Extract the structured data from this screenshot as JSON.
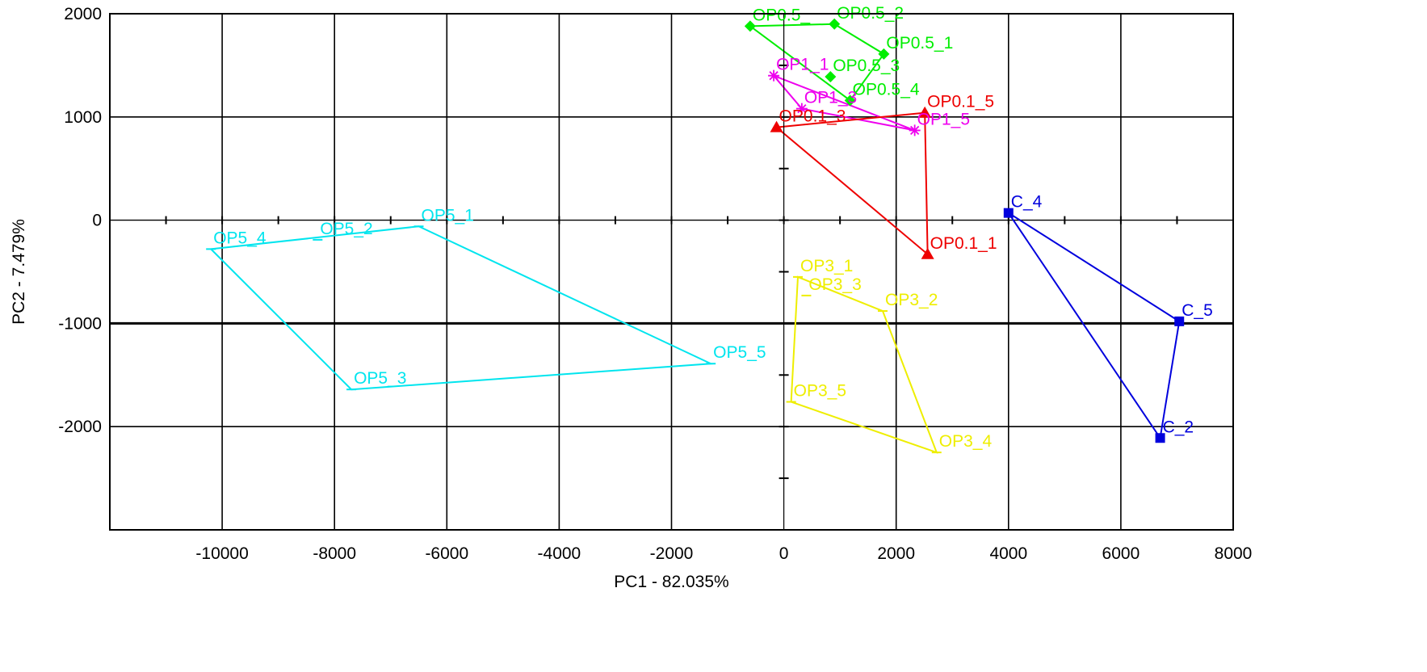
{
  "chart_data": {
    "type": "scatter",
    "title": "",
    "xlabel": "PC1 - 82.035%",
    "ylabel": "PC2 - 7.479%",
    "xlim": [
      -12000,
      8000
    ],
    "ylim": [
      -3000,
      2000
    ],
    "xticks": [
      -10000,
      -8000,
      -6000,
      -4000,
      -2000,
      0,
      2000,
      4000,
      6000,
      8000
    ],
    "yticks": [
      -2000,
      -1000,
      0,
      1000,
      2000
    ],
    "grid": true,
    "series": [
      {
        "color": "#00ee00",
        "marker": "diamond",
        "points": [
          {
            "label": "OP0.5_",
            "x": -600,
            "y": 1880
          },
          {
            "label": "OP0.5_2",
            "x": 900,
            "y": 1900
          },
          {
            "label": "OP0.5_1",
            "x": 1780,
            "y": 1610
          },
          {
            "label": "OP0.5_3",
            "x": 830,
            "y": 1390
          },
          {
            "label": "OP0.5_4",
            "x": 1180,
            "y": 1160
          }
        ],
        "hull": [
          "OP0.5_",
          "OP0.5_2",
          "OP0.5_1",
          "OP0.5_4"
        ]
      },
      {
        "color": "#ee00ee",
        "marker": "star",
        "points": [
          {
            "label": "OP1_1",
            "x": -180,
            "y": 1400
          },
          {
            "label": "OP1_3",
            "x": 320,
            "y": 1080
          },
          {
            "label": "OP1_5",
            "x": 2330,
            "y": 870
          }
        ],
        "hull": [
          "OP1_1",
          "OP1_3",
          "OP1_5"
        ]
      },
      {
        "color": "#ee0000",
        "marker": "triangle",
        "points": [
          {
            "label": "OP0.1_5",
            "x": 2510,
            "y": 1040
          },
          {
            "label": "OP0.1_3",
            "x": -130,
            "y": 900
          },
          {
            "label": "OP0.1_1",
            "x": 2560,
            "y": -330
          }
        ],
        "hull": [
          "OP0.1_3",
          "OP0.1_5",
          "OP0.1_1"
        ]
      },
      {
        "color": "#0000dd",
        "marker": "square",
        "points": [
          {
            "label": "C_4",
            "x": 4000,
            "y": 70
          },
          {
            "label": "C_5",
            "x": 7040,
            "y": -980
          },
          {
            "label": "C_2",
            "x": 6700,
            "y": -2110
          }
        ],
        "hull": [
          "C_4",
          "C_5",
          "C_2"
        ]
      },
      {
        "color": "#00e5ee",
        "marker": "dash",
        "points": [
          {
            "label": "OP5_1",
            "x": -6500,
            "y": -60
          },
          {
            "label": "OP5_2",
            "x": -8300,
            "y": -190
          },
          {
            "label": "OP5_4",
            "x": -10200,
            "y": -280
          },
          {
            "label": "OP5_3",
            "x": -7700,
            "y": -1640
          },
          {
            "label": "OP5_5",
            "x": -1300,
            "y": -1390
          }
        ],
        "hull": [
          "OP5_4",
          "OP5_1",
          "OP5_5",
          "OP5_3"
        ]
      },
      {
        "color": "#eeee00",
        "marker": "dash",
        "points": [
          {
            "label": "OP3_1",
            "x": 250,
            "y": -550
          },
          {
            "label": "OP3_3",
            "x": 400,
            "y": -730
          },
          {
            "label": "OP3_2",
            "x": 1760,
            "y": -880
          },
          {
            "label": "OP3_5",
            "x": 130,
            "y": -1760
          },
          {
            "label": "OP3_4",
            "x": 2720,
            "y": -2250
          }
        ],
        "hull": [
          "OP3_1",
          "OP3_2",
          "OP3_4",
          "OP3_5"
        ]
      }
    ]
  }
}
